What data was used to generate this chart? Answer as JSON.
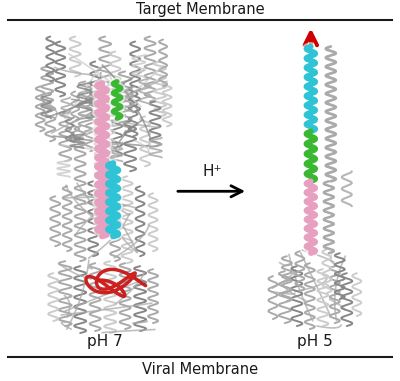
{
  "title_top": "Target Membrane",
  "title_bottom": "Viral Membrane",
  "label_left": "pH 7",
  "label_right": "pH 5",
  "arrow_label": "H⁺",
  "bg_color": "#ffffff",
  "text_color": "#1a1a1a",
  "line_color": "#1a1a1a",
  "arrow_color": "#000000",
  "red_arrow_color": "#cc0000",
  "colors": {
    "cyan": "#2ec4d6",
    "pink": "#e8a0c0",
    "green": "#3ab832",
    "red": "#cc1515",
    "gray": "#aaaaaa",
    "gray_dark": "#888888",
    "gray_light": "#cccccc"
  },
  "figsize": [
    4.0,
    3.81
  ],
  "dpi": 100
}
